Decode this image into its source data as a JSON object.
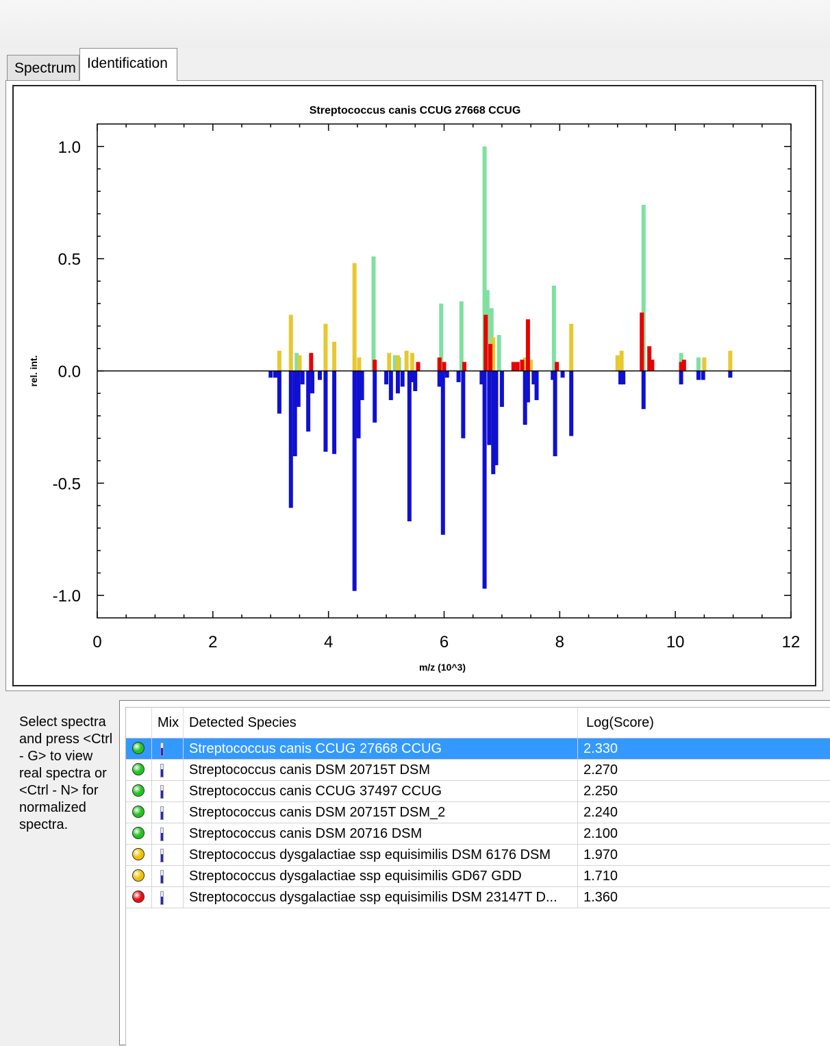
{
  "tabs": [
    {
      "label": "Spectrum",
      "active": false
    },
    {
      "label": "Identification",
      "active": true
    }
  ],
  "help_text": "Select spectra and press <Ctrl - G> to view real spectra or <Ctrl - N> for normalized spectra.",
  "table": {
    "headers": {
      "light": "",
      "mix": "Mix",
      "species": "Detected Species",
      "score": "Log(Score)"
    },
    "rows": [
      {
        "species": "Streptococcus canis CCUG 27668 CCUG",
        "score": "2.330",
        "light": "#22c322",
        "selected": true
      },
      {
        "species": "Streptococcus canis DSM 20715T DSM",
        "score": "2.270",
        "light": "#22c322",
        "selected": false
      },
      {
        "species": "Streptococcus canis CCUG 37497 CCUG",
        "score": "2.250",
        "light": "#22c322",
        "selected": false
      },
      {
        "species": "Streptococcus canis DSM 20715T DSM_2",
        "score": "2.240",
        "light": "#22c322",
        "selected": false
      },
      {
        "species": "Streptococcus canis DSM 20716 DSM",
        "score": "2.100",
        "light": "#22c322",
        "selected": false
      },
      {
        "species": "Streptococcus dysgalactiae ssp equisimilis DSM 6176 DSM",
        "score": "1.970",
        "light": "#f0c000",
        "selected": false
      },
      {
        "species": "Streptococcus dysgalactiae ssp equisimilis GD67 GDD",
        "score": "1.710",
        "light": "#f0c000",
        "selected": false
      },
      {
        "species": "Streptococcus dysgalactiae ssp equisimilis DSM 23147T D...",
        "score": "1.360",
        "light": "#e81010",
        "selected": false
      }
    ]
  },
  "colors": {
    "selection": "#3399ff",
    "matched": "#80e0a0",
    "unmatched_ref": "#e8c830",
    "unmatched_sample": "#e80000",
    "reference": "#1010d0"
  },
  "chart_data": {
    "type": "bar",
    "title": "Streptococcus canis CCUG 27668 CCUG",
    "xlabel": "m/z (10^3)",
    "ylabel": "rel. int.",
    "xlim": [
      0,
      12
    ],
    "ylim": [
      -1.1,
      1.1
    ],
    "xticks": [
      0,
      2,
      4,
      6,
      8,
      10,
      12
    ],
    "yticks": [
      -1.0,
      -0.5,
      0.0,
      0.5,
      1.0
    ],
    "ytick_labels": [
      "-1.0",
      "-0.5",
      "0.0",
      "0.5",
      "1.0"
    ],
    "series": [
      {
        "color": "#80e0a0",
        "points": [
          [
            3.45,
            0.08
          ],
          [
            4.78,
            0.51
          ],
          [
            5.15,
            0.07
          ],
          [
            5.22,
            0.06
          ],
          [
            5.95,
            0.3
          ],
          [
            6.3,
            0.31
          ],
          [
            6.7,
            1.0
          ],
          [
            6.75,
            0.36
          ],
          [
            6.82,
            0.28
          ],
          [
            6.95,
            0.16
          ],
          [
            7.9,
            0.38
          ],
          [
            9.45,
            0.74
          ],
          [
            10.1,
            0.08
          ],
          [
            10.4,
            0.06
          ]
        ]
      },
      {
        "color": "#e8c830",
        "points": [
          [
            3.15,
            0.09
          ],
          [
            3.35,
            0.25
          ],
          [
            3.5,
            0.07
          ],
          [
            3.95,
            0.21
          ],
          [
            4.1,
            0.13
          ],
          [
            4.45,
            0.48
          ],
          [
            4.53,
            0.06
          ],
          [
            5.05,
            0.08
          ],
          [
            5.2,
            0.07
          ],
          [
            5.35,
            0.09
          ],
          [
            5.45,
            0.08
          ],
          [
            6.85,
            0.15
          ],
          [
            7.4,
            0.06
          ],
          [
            7.5,
            0.05
          ],
          [
            7.95,
            0.04
          ],
          [
            8.2,
            0.21
          ],
          [
            9.0,
            0.07
          ],
          [
            9.07,
            0.09
          ],
          [
            10.5,
            0.06
          ],
          [
            10.95,
            0.09
          ]
        ]
      },
      {
        "color": "#e80000",
        "points": [
          [
            3.7,
            0.08
          ],
          [
            4.8,
            0.05
          ],
          [
            5.55,
            0.04
          ],
          [
            5.92,
            0.06
          ],
          [
            6.0,
            0.04
          ],
          [
            6.35,
            0.04
          ],
          [
            6.72,
            0.25
          ],
          [
            6.8,
            0.12
          ],
          [
            7.2,
            0.04
          ],
          [
            7.27,
            0.04
          ],
          [
            7.35,
            0.05
          ],
          [
            7.45,
            0.23
          ],
          [
            7.95,
            0.04
          ],
          [
            9.42,
            0.26
          ],
          [
            9.55,
            0.11
          ],
          [
            9.6,
            0.05
          ],
          [
            10.1,
            0.04
          ],
          [
            10.15,
            0.05
          ]
        ]
      },
      {
        "color": "#1010d0",
        "points": [
          [
            3.0,
            -0.03
          ],
          [
            3.08,
            -0.03
          ],
          [
            3.15,
            -0.19
          ],
          [
            3.35,
            -0.61
          ],
          [
            3.42,
            -0.38
          ],
          [
            3.48,
            -0.16
          ],
          [
            3.55,
            -0.06
          ],
          [
            3.65,
            -0.27
          ],
          [
            3.72,
            -0.1
          ],
          [
            3.85,
            -0.04
          ],
          [
            3.95,
            -0.36
          ],
          [
            4.1,
            -0.37
          ],
          [
            4.45,
            -0.98
          ],
          [
            4.52,
            -0.3
          ],
          [
            4.58,
            -0.13
          ],
          [
            4.8,
            -0.23
          ],
          [
            5.0,
            -0.06
          ],
          [
            5.08,
            -0.13
          ],
          [
            5.2,
            -0.1
          ],
          [
            5.28,
            -0.07
          ],
          [
            5.4,
            -0.67
          ],
          [
            5.45,
            -0.05
          ],
          [
            5.5,
            -0.09
          ],
          [
            5.92,
            -0.07
          ],
          [
            5.98,
            -0.73
          ],
          [
            6.05,
            -0.03
          ],
          [
            6.25,
            -0.05
          ],
          [
            6.33,
            -0.3
          ],
          [
            6.65,
            -0.06
          ],
          [
            6.7,
            -0.97
          ],
          [
            6.78,
            -0.33
          ],
          [
            6.85,
            -0.46
          ],
          [
            6.9,
            -0.42
          ],
          [
            7.0,
            -0.16
          ],
          [
            7.4,
            -0.24
          ],
          [
            7.45,
            -0.14
          ],
          [
            7.55,
            -0.06
          ],
          [
            7.6,
            -0.13
          ],
          [
            7.88,
            -0.04
          ],
          [
            7.92,
            -0.38
          ],
          [
            8.05,
            -0.03
          ],
          [
            8.2,
            -0.29
          ],
          [
            9.05,
            -0.06
          ],
          [
            9.1,
            -0.06
          ],
          [
            9.45,
            -0.17
          ],
          [
            10.1,
            -0.06
          ],
          [
            10.4,
            -0.04
          ],
          [
            10.48,
            -0.04
          ],
          [
            10.95,
            -0.03
          ]
        ]
      }
    ]
  }
}
